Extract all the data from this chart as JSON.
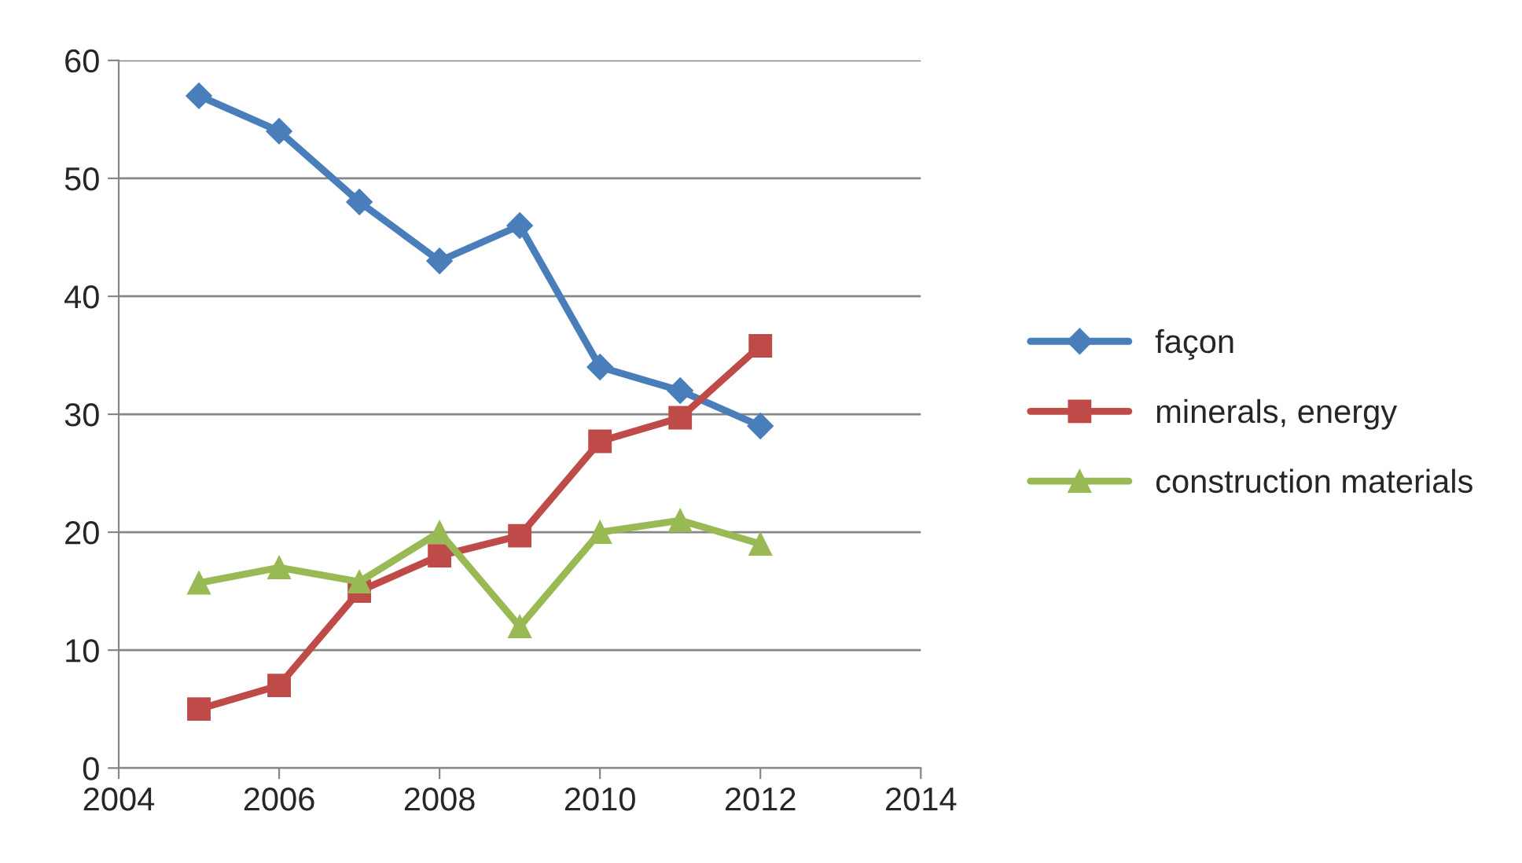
{
  "chart_data": {
    "type": "line",
    "x": [
      2005,
      2006,
      2007,
      2008,
      2009,
      2010,
      2011,
      2012
    ],
    "series": [
      {
        "name": "façon",
        "color": "#4a7ebb",
        "marker": "diamond",
        "values": [
          57,
          54,
          48,
          43,
          46,
          34,
          32,
          29
        ]
      },
      {
        "name": "minerals, energy",
        "color": "#be4b48",
        "marker": "square",
        "values": [
          5,
          7,
          15,
          18,
          19.7,
          27.7,
          29.7,
          35.8
        ]
      },
      {
        "name": "construction materials",
        "color": "#98b954",
        "marker": "triangle",
        "values": [
          15.7,
          17,
          15.8,
          20,
          12,
          20,
          21,
          19
        ]
      }
    ],
    "xlim": [
      2004,
      2014
    ],
    "xticks": [
      2004,
      2006,
      2008,
      2010,
      2012,
      2014
    ],
    "ylim": [
      0,
      60
    ],
    "yticks": [
      0,
      10,
      20,
      30,
      40,
      50,
      60
    ],
    "grid": "y",
    "legend": "right",
    "line_style": "solid"
  }
}
